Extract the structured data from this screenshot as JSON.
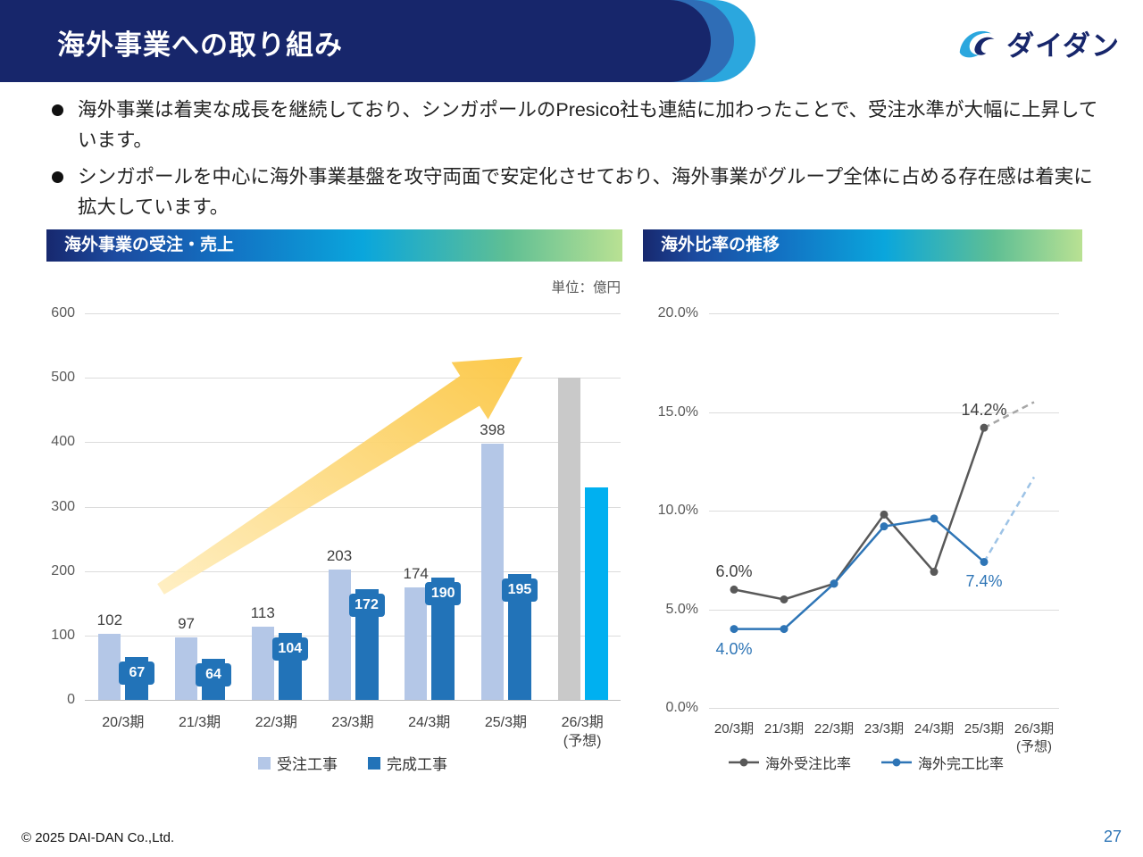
{
  "header": {
    "title": "海外事業への取り組み",
    "logo_text": "ダイダン"
  },
  "bullets": [
    "海外事業は着実な成長を継続しており、シンガポールのPresico社も連結に加わったことで、受注水準が大幅に上昇しています。",
    "シンガポールを中心に海外事業基盤を攻守両面で安定化させており、海外事業がグループ全体に占める存在感は着実に拡大しています。"
  ],
  "left_panel": {
    "title": "海外事業の受注・売上",
    "unit_label": "単位：億円"
  },
  "right_panel": {
    "title": "海外比率の推移"
  },
  "chart_data": [
    {
      "type": "bar",
      "title": "海外事業の受注・売上",
      "unit": "単位：億円",
      "categories": [
        "20/3期",
        "21/3期",
        "22/3期",
        "23/3期",
        "24/3期",
        "25/3期",
        "26/3期"
      ],
      "forecast_index": 6,
      "forecast_label": "(予想)",
      "series": [
        {
          "name": "受注工事",
          "color": "#b4c7e7",
          "forecast_color": "#c9c9c9",
          "values": [
            102,
            97,
            113,
            203,
            174,
            398,
            500
          ]
        },
        {
          "name": "完成工事",
          "color": "#2273b8",
          "forecast_color": "#00b0f0",
          "values": [
            67,
            64,
            104,
            172,
            190,
            195,
            330
          ]
        }
      ],
      "ylim": [
        0,
        600
      ],
      "yticks": [
        0,
        100,
        200,
        300,
        400,
        500,
        600
      ],
      "grid": true,
      "legend_position": "bottom"
    },
    {
      "type": "line",
      "title": "海外比率の推移",
      "categories": [
        "20/3期",
        "21/3期",
        "22/3期",
        "23/3期",
        "24/3期",
        "25/3期",
        "26/3期"
      ],
      "forecast_index": 6,
      "forecast_label": "(予想)",
      "series": [
        {
          "name": "海外受注比率",
          "color": "#595959",
          "forecast_color": "#a6a6a6",
          "values": [
            6.0,
            5.5,
            6.3,
            9.8,
            6.9,
            14.2
          ],
          "forecast_value": 15.5
        },
        {
          "name": "海外完工比率",
          "color": "#2e75b6",
          "forecast_color": "#9dc3e6",
          "values": [
            4.0,
            4.0,
            6.3,
            9.2,
            9.6,
            7.4
          ],
          "forecast_value": 11.7
        }
      ],
      "ylim": [
        0,
        20
      ],
      "yticks": [
        0,
        5,
        10,
        15,
        20
      ],
      "ytick_labels": [
        "0.0%",
        "5.0%",
        "10.0%",
        "15.0%",
        "20.0%"
      ],
      "annotations": [
        {
          "text": "6.0%",
          "series": 0,
          "index": 0,
          "placement": "above",
          "color": "#404040"
        },
        {
          "text": "4.0%",
          "series": 1,
          "index": 0,
          "placement": "below",
          "color": "#2e75b6"
        },
        {
          "text": "14.2%",
          "series": 0,
          "index": 5,
          "placement": "above",
          "color": "#404040"
        },
        {
          "text": "7.4%",
          "series": 1,
          "index": 5,
          "placement": "below",
          "color": "#2e75b6"
        }
      ],
      "grid": true,
      "legend_position": "bottom"
    }
  ],
  "footer": {
    "copyright": "© 2025 DAI-DAN Co.,Ltd.",
    "page_number": "27"
  }
}
